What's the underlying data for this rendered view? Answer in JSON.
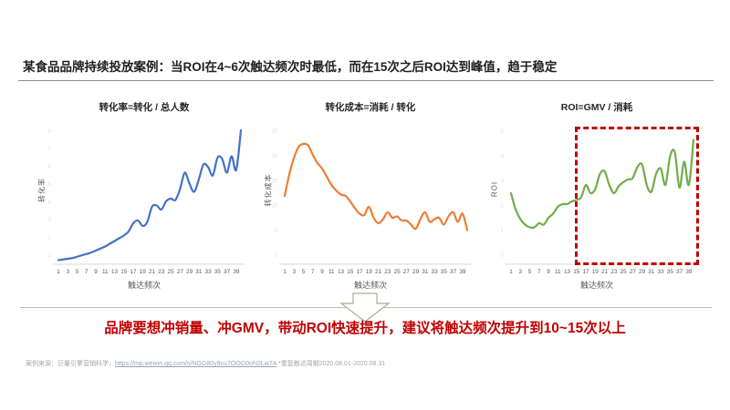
{
  "slide": {
    "title": "某食品品牌持续投放案例：当ROI在4~6次触达频次时最低，而在15次之后ROI达到峰值，趋于稳定",
    "conclusion": "品牌要想冲销量、冲GMV，带动ROI快速提升，建议将触达频次提升到10~15次以上",
    "footer": {
      "source_prefix": "案例来源：巨量引擎营销科学，",
      "source_link": "https://mp.weixin.qq.com/s/NGG80y9cu7OOG0oN2Lw7A",
      "source_suffix": " *重复触达周期2020.08.01-2020.08.31"
    }
  },
  "colors": {
    "accent_red": "#C00000",
    "series_blue": "#4472C4",
    "series_orange": "#ED7D31",
    "series_green": "#70AD47",
    "axis_gray": "#595959",
    "divider_tan": "#c4b9ac"
  },
  "chart_data": [
    {
      "type": "line",
      "title": "转化率=转化 / 总人数",
      "xlabel": "触达频次",
      "ylabel": "转化率",
      "x_range": [
        1,
        40
      ],
      "x_ticks": [
        1,
        3,
        5,
        7,
        9,
        11,
        13,
        15,
        17,
        19,
        21,
        23,
        25,
        27,
        29,
        31,
        33,
        35,
        37,
        39
      ],
      "y_ticks_faint": [
        "8",
        "7",
        "6",
        "5",
        "4",
        "3",
        "2",
        "1"
      ],
      "y_unit": "relative height % (y-axis tick labels illegible in source)",
      "grid": false,
      "legend": false,
      "series": [
        {
          "name": "转化率",
          "color": "#4472C4",
          "values": [
            3,
            3.5,
            4,
            4.5,
            5.5,
            6.5,
            7.5,
            8.5,
            10,
            11.5,
            13,
            15,
            17,
            19,
            21,
            24,
            30,
            32,
            28,
            31,
            42,
            43,
            40,
            46,
            48,
            47,
            55,
            67,
            59,
            53,
            62,
            73,
            71,
            65,
            78,
            77,
            67,
            79,
            69,
            98
          ]
        }
      ]
    },
    {
      "type": "line",
      "title": "转化成本=消耗 / 转化",
      "xlabel": "触达频次",
      "ylabel": "转化成本",
      "x_range": [
        1,
        40
      ],
      "x_ticks": [
        1,
        3,
        5,
        7,
        9,
        11,
        13,
        15,
        17,
        19,
        21,
        23,
        25,
        27,
        29,
        31,
        33,
        35,
        37,
        39
      ],
      "y_ticks_faint": [
        "25",
        "20",
        "15",
        "10",
        "5",
        "0"
      ],
      "y_unit": "relative height % (y-axis tick labels illegible in source)",
      "grid": false,
      "legend": false,
      "series": [
        {
          "name": "转化成本",
          "color": "#ED7D31",
          "values": [
            50,
            66,
            78,
            86,
            88,
            87,
            80,
            74,
            70,
            64,
            58,
            54,
            51,
            50,
            46,
            41,
            37,
            36,
            42,
            34,
            30,
            33,
            38,
            34,
            35,
            32,
            32,
            29,
            26,
            33,
            38,
            31,
            33,
            34,
            29,
            35,
            38,
            31,
            37,
            25
          ]
        }
      ]
    },
    {
      "type": "line",
      "title": "ROI=GMV / 消耗",
      "xlabel": "触达频次",
      "ylabel": "ROI",
      "x_range": [
        1,
        40
      ],
      "x_ticks": [
        1,
        3,
        5,
        7,
        9,
        11,
        13,
        15,
        17,
        19,
        21,
        23,
        25,
        27,
        29,
        31,
        33,
        35,
        37,
        39
      ],
      "y_ticks_faint": [
        "5",
        "4",
        "3",
        "2",
        "1",
        "0"
      ],
      "y_unit": "relative height % (y-axis tick labels illegible in source)",
      "grid": false,
      "legend": false,
      "highlight_box": {
        "x_from": 15,
        "x_to": 40,
        "style": "dashed",
        "color": "#C00000"
      },
      "series": [
        {
          "name": "ROI",
          "color": "#70AD47",
          "values": [
            52,
            40,
            33,
            29,
            27,
            27,
            30,
            29,
            34,
            37,
            42,
            44,
            44,
            46,
            47,
            49,
            58,
            52,
            55,
            66,
            68,
            58,
            52,
            57,
            60,
            62,
            63,
            71,
            73,
            58,
            53,
            66,
            70,
            58,
            79,
            82,
            56,
            75,
            58,
            91
          ]
        }
      ]
    }
  ]
}
